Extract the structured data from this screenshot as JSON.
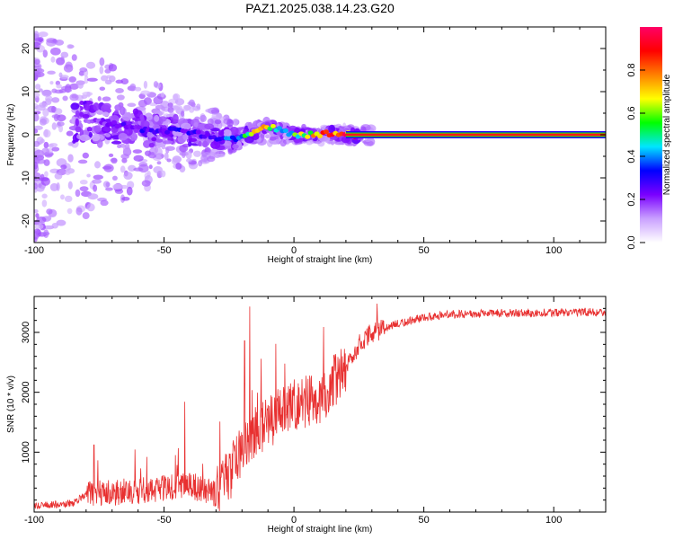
{
  "title": "PAZ1.2025.038.14.23.G20",
  "chart_data": [
    {
      "type": "heatmap",
      "title": "PAZ1.2025.038.14.23.G20",
      "xlabel": "Height of straight line (km)",
      "ylabel": "Frequency (Hz)",
      "xlim": [
        -100,
        120
      ],
      "ylim": [
        -25,
        25
      ],
      "xticks": [
        -100,
        -50,
        0,
        50,
        100
      ],
      "yticks": [
        -20,
        -10,
        0,
        10,
        20
      ],
      "colorbar": {
        "label": "Normalized spectral amplitude",
        "range": [
          0,
          1
        ],
        "ticks": [
          0.0,
          0.2,
          0.4,
          0.6,
          0.8
        ],
        "colors": [
          "#ffffff",
          "#c9a0ff",
          "#7a00ff",
          "#0000ff",
          "#00e5ff",
          "#00ff00",
          "#ffff00",
          "#ff8000",
          "#ff0000",
          "#ff0066"
        ]
      },
      "ridge": {
        "x": [
          -85,
          -75,
          -65,
          -55,
          -45,
          -35,
          -28,
          -22,
          -15,
          -10,
          -5,
          0,
          5,
          10,
          15,
          20,
          40,
          60,
          80,
          100,
          120
        ],
        "freq": [
          3,
          3,
          2,
          1,
          1,
          0,
          -1,
          -1,
          1,
          2,
          1,
          0,
          0,
          0,
          0.5,
          0,
          0,
          0,
          0,
          0,
          0
        ],
        "amplitude": [
          0.1,
          0.2,
          0.25,
          0.3,
          0.3,
          0.3,
          0.35,
          0.45,
          0.7,
          0.75,
          0.55,
          0.55,
          0.75,
          0.8,
          0.85,
          0.9,
          0.95,
          0.95,
          0.95,
          0.95,
          0.95
        ]
      }
    },
    {
      "type": "line",
      "xlabel": "Height of straight line (km)",
      "ylabel": "SNR (10 * v/v)",
      "xlim": [
        -100,
        120
      ],
      "ylim": [
        0,
        3600
      ],
      "xticks": [
        -100,
        -50,
        0,
        50,
        100
      ],
      "yticks": [
        1000,
        2000,
        3000
      ],
      "color": "#e83030",
      "trend": {
        "x": [
          -100,
          -85,
          -80,
          -60,
          -40,
          -30,
          -25,
          -20,
          -10,
          0,
          10,
          20,
          25,
          30,
          40,
          50,
          60,
          80,
          100,
          120
        ],
        "y": [
          100,
          150,
          300,
          350,
          450,
          300,
          600,
          1100,
          1500,
          1800,
          1900,
          2400,
          2800,
          3000,
          3150,
          3250,
          3300,
          3320,
          3330,
          3340
        ]
      },
      "spikes": [
        {
          "x": -77,
          "y": 1120
        },
        {
          "x": -42,
          "y": 1840
        },
        {
          "x": -17,
          "y": 3430
        },
        {
          "x": -19,
          "y": 2860
        },
        {
          "x": -7,
          "y": 2810
        },
        {
          "x": 32,
          "y": 3480
        }
      ]
    }
  ]
}
